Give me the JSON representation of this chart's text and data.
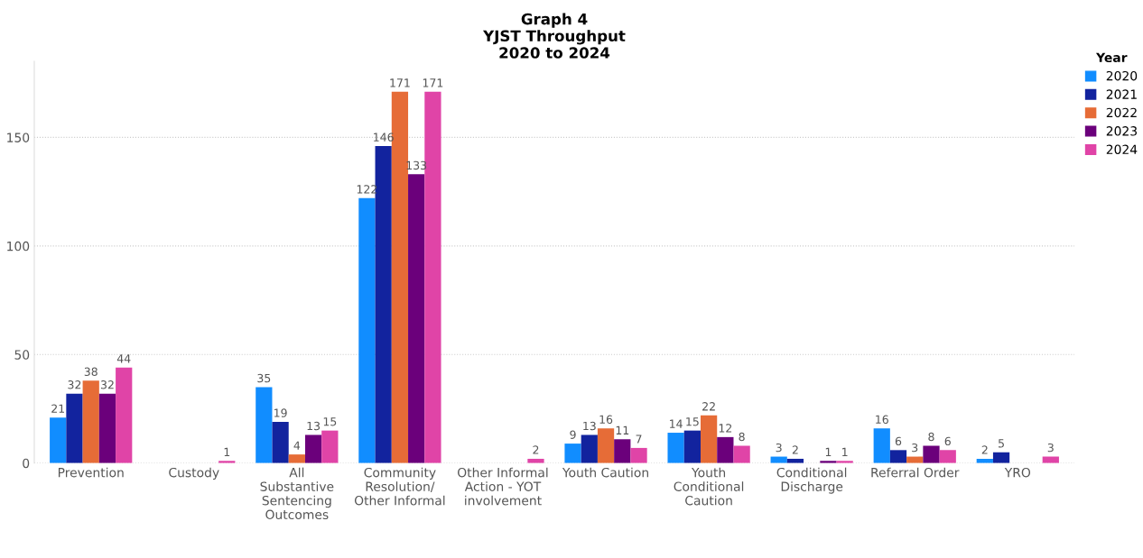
{
  "chart_data": {
    "type": "bar",
    "title": "Graph 4\nYJST Throughput\n2020 to 2024",
    "categories": [
      "Prevention",
      "Custody",
      "All Substantive Sentencing Outcomes",
      "Community Resolution/ Other Informal",
      "Other Informal Action - YOT involvement",
      "Youth Caution",
      "Youth Conditional Caution",
      "Conditional Discharge",
      "Referral Order",
      "YRO"
    ],
    "series": [
      {
        "name": "2020",
        "color": "#118dff",
        "values": [
          21,
          null,
          35,
          122,
          null,
          9,
          14,
          3,
          16,
          2
        ]
      },
      {
        "name": "2021",
        "color": "#12239e",
        "values": [
          32,
          null,
          19,
          146,
          null,
          13,
          15,
          2,
          6,
          5
        ]
      },
      {
        "name": "2022",
        "color": "#e66c37",
        "values": [
          38,
          null,
          4,
          171,
          null,
          16,
          22,
          null,
          3,
          null
        ]
      },
      {
        "name": "2023",
        "color": "#6b007b",
        "values": [
          32,
          null,
          13,
          133,
          null,
          11,
          12,
          1,
          8,
          null
        ]
      },
      {
        "name": "2024",
        "color": "#e044a7",
        "values": [
          44,
          1,
          15,
          171,
          2,
          7,
          8,
          1,
          6,
          3
        ]
      }
    ],
    "legend_title": "Year",
    "legend": "top right",
    "ylim": [
      0,
      185
    ],
    "yticks": [
      0,
      50,
      100,
      150
    ],
    "grid": "y",
    "data_labels": true
  }
}
